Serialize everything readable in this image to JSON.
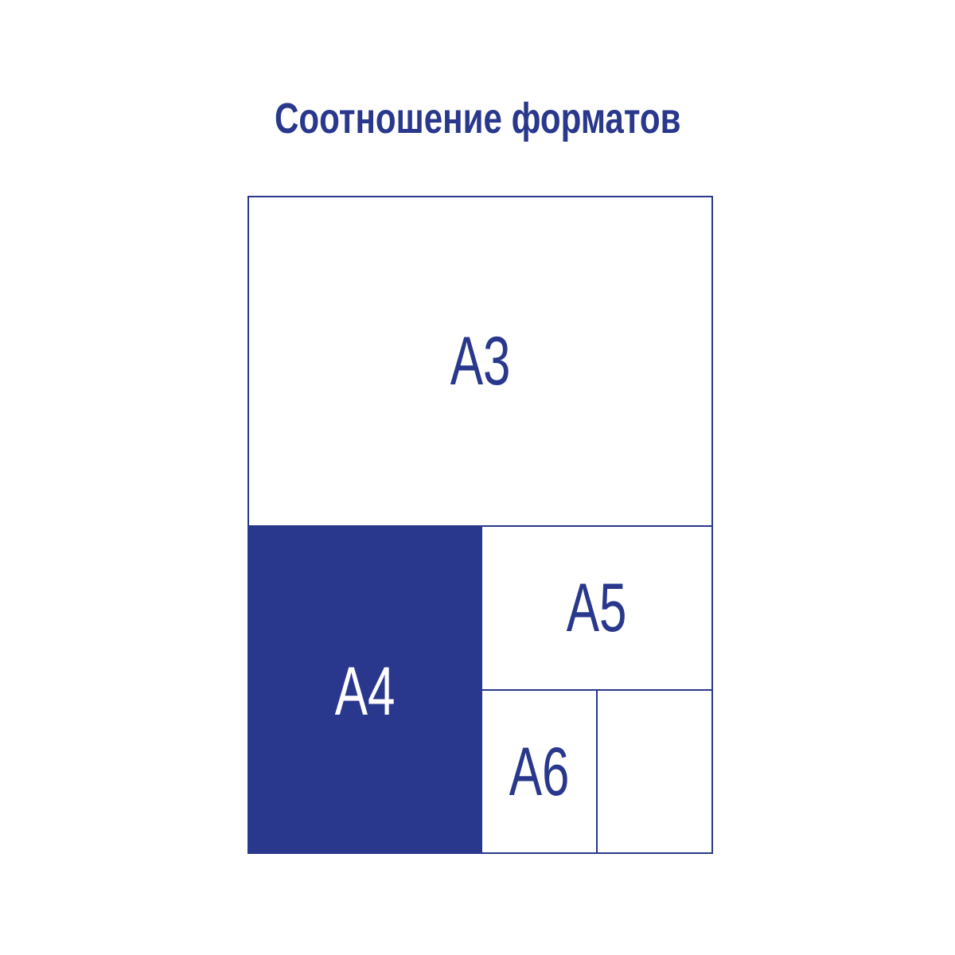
{
  "title": "Соотношение форматов",
  "colors": {
    "accent": "#29388c",
    "background": "#ffffff"
  },
  "formats": [
    {
      "label": "A3",
      "filled": false
    },
    {
      "label": "A4",
      "filled": true
    },
    {
      "label": "A5",
      "filled": false
    },
    {
      "label": "A6",
      "filled": false
    },
    {
      "label": "",
      "filled": false
    }
  ]
}
